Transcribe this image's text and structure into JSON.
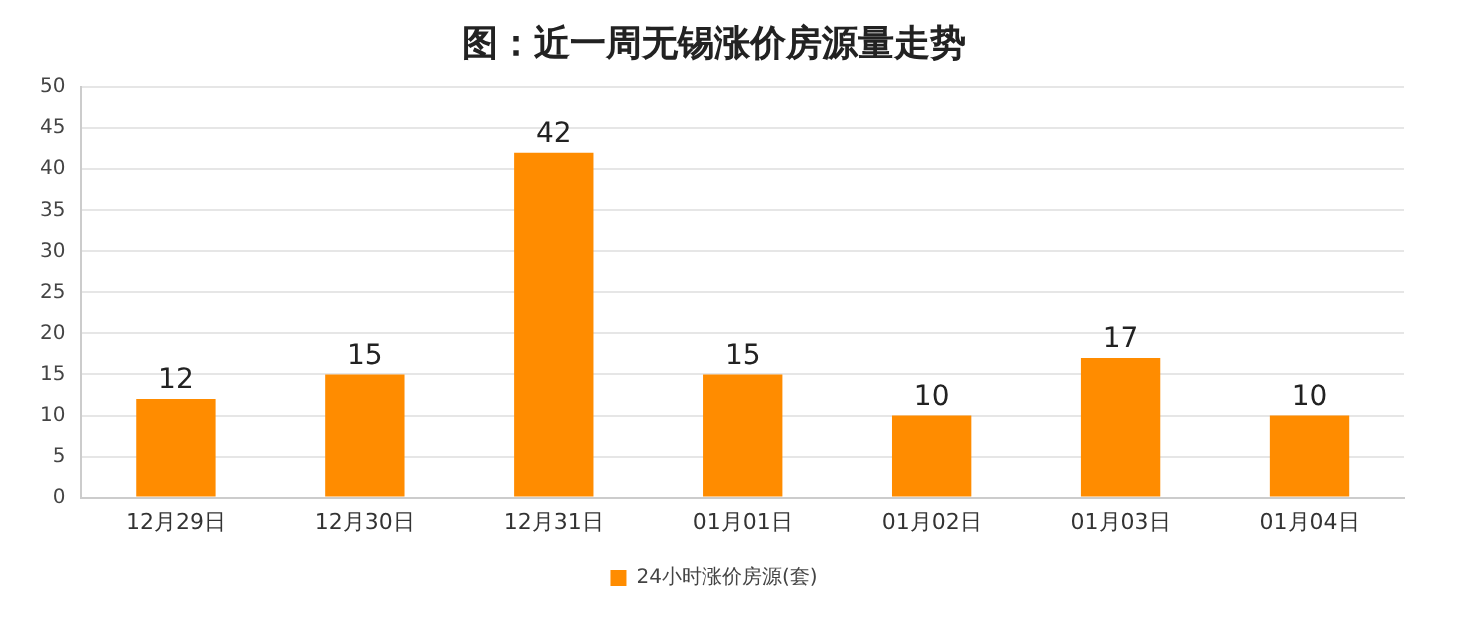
{
  "chart_data": {
    "type": "bar",
    "title": "图：近一周无锡涨价房源量走势",
    "categories": [
      "12月29日",
      "12月30日",
      "12月31日",
      "01月01日",
      "01月02日",
      "01月03日",
      "01月04日"
    ],
    "series": [
      {
        "name": "24小时涨价房源(套)",
        "color": "#ff8c00",
        "values": [
          12,
          15,
          42,
          15,
          10,
          17,
          10
        ]
      }
    ],
    "ylim": [
      0,
      50
    ],
    "yticks": [
      0,
      5,
      10,
      15,
      20,
      25,
      30,
      35,
      40,
      45,
      50
    ],
    "grid": "y",
    "legend": "bottom",
    "data_labels": true
  }
}
